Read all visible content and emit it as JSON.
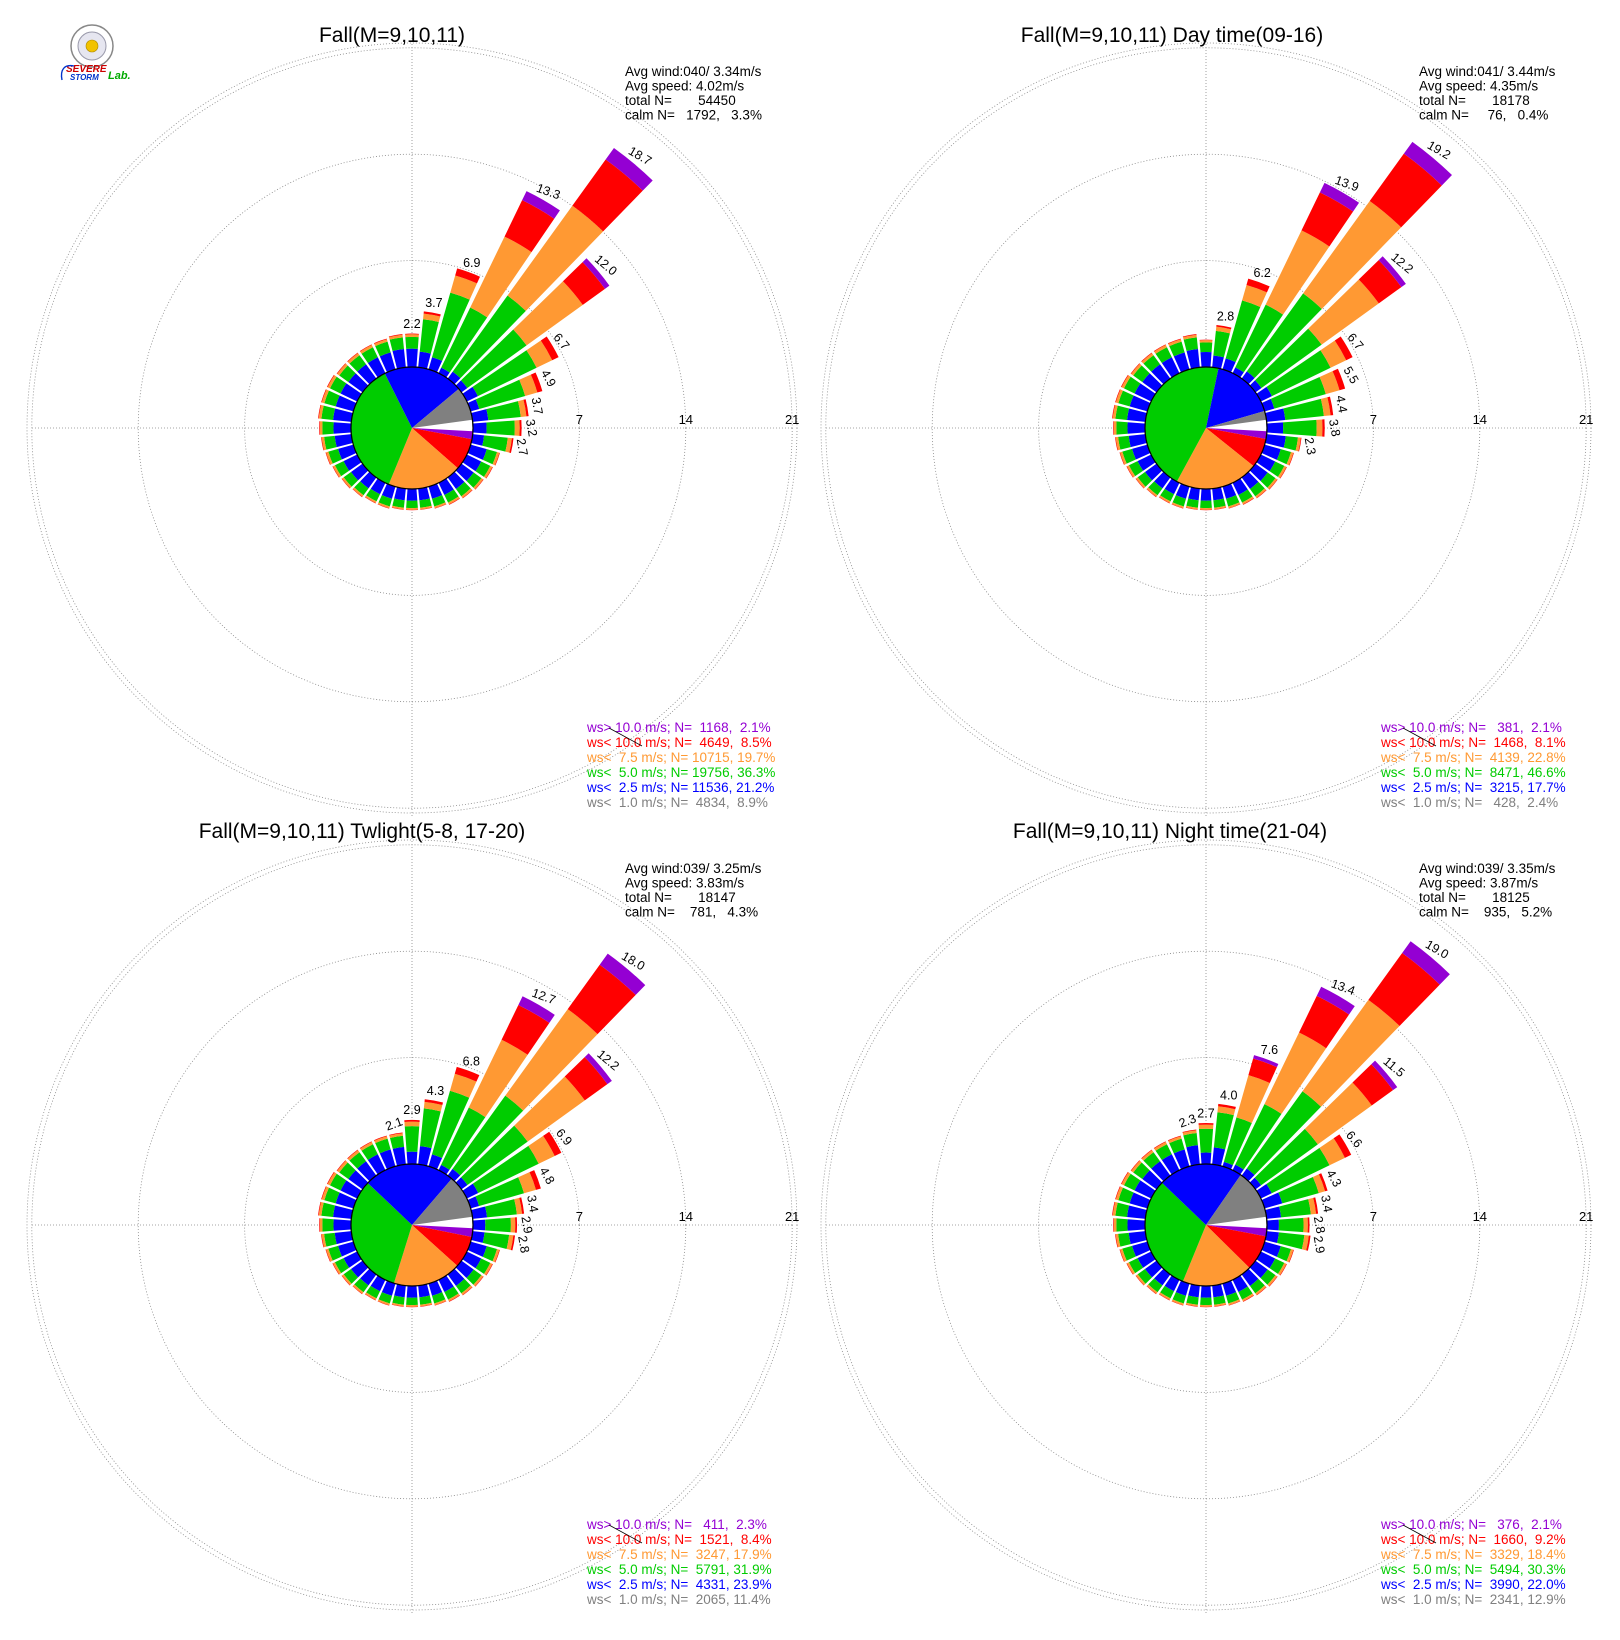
{
  "logo": {
    "lines": [
      "SEVERE",
      "STORM"
    ],
    "suffix": "Lab.",
    "colors": {
      "severe": "#cc0000",
      "storm": "#0033cc",
      "lab": "#00aa00",
      "seal": "#888888"
    }
  },
  "legend_colors": {
    "gt10": "#9400d3",
    "lt10": "#ff0000",
    "lt7_5": "#ff9933",
    "lt5": "#00cc00",
    "lt2_5": "#0000ff",
    "lt1": "#808080"
  },
  "chart_data": [
    {
      "type": "wind-rose",
      "title": "Fall(M=9,10,11)",
      "stats": [
        "Avg wind:040/ 3.34m/s",
        "Avg speed: 4.02m/s",
        "total N=       54450",
        "calm N=   1792,   3.3%"
      ],
      "rings": [
        "7",
        "14",
        "21"
      ],
      "rmax": 21,
      "labeled_sectors": [
        {
          "deg": 0,
          "value": 2.2,
          "label": "2.2"
        },
        {
          "deg": 10,
          "value": 3.7,
          "label": "3.7"
        },
        {
          "deg": 20,
          "value": 6.9,
          "label": "6.9"
        },
        {
          "deg": 30,
          "value": 13.3,
          "label": "13.3"
        },
        {
          "deg": 40,
          "value": 18.7,
          "label": "18.7"
        },
        {
          "deg": 50,
          "value": 12.0,
          "label": "12.0"
        },
        {
          "deg": 60,
          "value": 6.7,
          "label": "6.7"
        },
        {
          "deg": 70,
          "value": 4.9,
          "label": "4.9"
        },
        {
          "deg": 80,
          "value": 3.7,
          "label": "3.7"
        },
        {
          "deg": 90,
          "value": 3.2,
          "label": "3.2"
        },
        {
          "deg": 100,
          "value": 2.7,
          "label": "2.7"
        }
      ],
      "pie": [
        8.9,
        21.2,
        36.3,
        19.7,
        8.5,
        2.1
      ],
      "legend": [
        {
          "key": "gt10",
          "text": "ws> 10.0 m/s; N=  1168,  2.1%"
        },
        {
          "key": "lt10",
          "text": "ws< 10.0 m/s; N=  4649,  8.5%"
        },
        {
          "key": "lt7_5",
          "text": "ws<  7.5 m/s; N= 10715, 19.7%"
        },
        {
          "key": "lt5",
          "text": "ws<  5.0 m/s; N= 19756, 36.3%"
        },
        {
          "key": "lt2_5",
          "text": "ws<  2.5 m/s; N= 11536, 21.2%"
        },
        {
          "key": "lt1",
          "text": "ws<  1.0 m/s; N=  4834,  8.9%"
        }
      ]
    },
    {
      "type": "wind-rose",
      "title": "Fall(M=9,10,11) Day time(09-16)",
      "stats": [
        "Avg wind:041/ 3.44m/s",
        "Avg speed: 4.35m/s",
        "total N=       18178",
        "calm N=     76,   0.4%"
      ],
      "rings": [
        "7",
        "14",
        "21"
      ],
      "rmax": 21,
      "labeled_sectors": [
        {
          "deg": 10,
          "value": 2.8,
          "label": "2.8"
        },
        {
          "deg": 20,
          "value": 6.2,
          "label": "6.2"
        },
        {
          "deg": 30,
          "value": 13.9,
          "label": "13.9"
        },
        {
          "deg": 40,
          "value": 19.2,
          "label": "19.2"
        },
        {
          "deg": 50,
          "value": 12.2,
          "label": "12.2"
        },
        {
          "deg": 60,
          "value": 6.7,
          "label": "6.7"
        },
        {
          "deg": 70,
          "value": 5.5,
          "label": "5.5"
        },
        {
          "deg": 80,
          "value": 4.4,
          "label": "4.4"
        },
        {
          "deg": 90,
          "value": 3.8,
          "label": "3.8"
        },
        {
          "deg": 100,
          "value": 2.3,
          "label": "2.3"
        }
      ],
      "pie": [
        2.4,
        17.7,
        46.6,
        22.8,
        8.1,
        2.1
      ],
      "legend": [
        {
          "key": "gt10",
          "text": "ws> 10.0 m/s; N=   381,  2.1%"
        },
        {
          "key": "lt10",
          "text": "ws< 10.0 m/s; N=  1468,  8.1%"
        },
        {
          "key": "lt7_5",
          "text": "ws<  7.5 m/s; N=  4139, 22.8%"
        },
        {
          "key": "lt5",
          "text": "ws<  5.0 m/s; N=  8471, 46.6%"
        },
        {
          "key": "lt2_5",
          "text": "ws<  2.5 m/s; N=  3215, 17.7%"
        },
        {
          "key": "lt1",
          "text": "ws<  1.0 m/s; N=   428,  2.4%"
        }
      ]
    },
    {
      "type": "wind-rose",
      "title": "Fall(M=9,10,11) Twlight(5-8, 17-20)",
      "stats": [
        "Avg wind:039/ 3.25m/s",
        "Avg speed: 3.83m/s",
        "total N=       18147",
        "calm N=    781,   4.3%"
      ],
      "rings": [
        "7",
        "14",
        "21"
      ],
      "rmax": 21,
      "labeled_sectors": [
        {
          "deg": -10,
          "value": 2.1,
          "label": "2.1"
        },
        {
          "deg": 0,
          "value": 2.9,
          "label": "2.9"
        },
        {
          "deg": 10,
          "value": 4.3,
          "label": "4.3"
        },
        {
          "deg": 20,
          "value": 6.8,
          "label": "6.8"
        },
        {
          "deg": 30,
          "value": 12.7,
          "label": "12.7"
        },
        {
          "deg": 40,
          "value": 18.0,
          "label": "18.0"
        },
        {
          "deg": 50,
          "value": 12.2,
          "label": "12.2"
        },
        {
          "deg": 60,
          "value": 6.9,
          "label": "6.9"
        },
        {
          "deg": 70,
          "value": 4.8,
          "label": "4.8"
        },
        {
          "deg": 80,
          "value": 3.4,
          "label": "3.4"
        },
        {
          "deg": 90,
          "value": 2.9,
          "label": "2.9"
        },
        {
          "deg": 100,
          "value": 2.8,
          "label": "2.8"
        }
      ],
      "pie": [
        11.4,
        23.9,
        31.9,
        17.9,
        8.4,
        2.3
      ],
      "legend": [
        {
          "key": "gt10",
          "text": "ws> 10.0 m/s; N=   411,  2.3%"
        },
        {
          "key": "lt10",
          "text": "ws< 10.0 m/s; N=  1521,  8.4%"
        },
        {
          "key": "lt7_5",
          "text": "ws<  7.5 m/s; N=  3247, 17.9%"
        },
        {
          "key": "lt5",
          "text": "ws<  5.0 m/s; N=  5791, 31.9%"
        },
        {
          "key": "lt2_5",
          "text": "ws<  2.5 m/s; N=  4331, 23.9%"
        },
        {
          "key": "lt1",
          "text": "ws<  1.0 m/s; N=  2065, 11.4%"
        }
      ]
    },
    {
      "type": "wind-rose",
      "title": "Fall(M=9,10,11) Night time(21-04)",
      "stats": [
        "Avg wind:039/ 3.35m/s",
        "Avg speed: 3.87m/s",
        "total N=       18125",
        "calm N=    935,   5.2%"
      ],
      "rings": [
        "7",
        "14",
        "21"
      ],
      "rmax": 21,
      "labeled_sectors": [
        {
          "deg": -10,
          "value": 2.3,
          "label": "2.3"
        },
        {
          "deg": 0,
          "value": 2.7,
          "label": "2.7"
        },
        {
          "deg": 10,
          "value": 4.0,
          "label": "4.0"
        },
        {
          "deg": 20,
          "value": 7.6,
          "label": "7.6"
        },
        {
          "deg": 30,
          "value": 13.4,
          "label": "13.4"
        },
        {
          "deg": 40,
          "value": 19.0,
          "label": "19.0"
        },
        {
          "deg": 50,
          "value": 11.5,
          "label": "11.5"
        },
        {
          "deg": 60,
          "value": 6.6,
          "label": "6.6"
        },
        {
          "deg": 70,
          "value": 4.3,
          "label": "4.3"
        },
        {
          "deg": 80,
          "value": 3.4,
          "label": "3.4"
        },
        {
          "deg": 90,
          "value": 2.8,
          "label": "2.8"
        },
        {
          "deg": 100,
          "value": 2.9,
          "label": "2.9"
        }
      ],
      "pie": [
        12.9,
        22.0,
        30.3,
        18.4,
        9.2,
        2.1
      ],
      "legend": [
        {
          "key": "gt10",
          "text": "ws> 10.0 m/s; N=   376,  2.1%"
        },
        {
          "key": "lt10",
          "text": "ws< 10.0 m/s; N=  1660,  9.2%"
        },
        {
          "key": "lt7_5",
          "text": "ws<  7.5 m/s; N=  3329, 18.4%"
        },
        {
          "key": "lt5",
          "text": "ws<  5.0 m/s; N=  5494, 30.3%"
        },
        {
          "key": "lt2_5",
          "text": "ws<  2.5 m/s; N=  3990, 22.0%"
        },
        {
          "key": "lt1",
          "text": "ws<  1.0 m/s; N=  2341, 12.9%"
        }
      ]
    }
  ]
}
